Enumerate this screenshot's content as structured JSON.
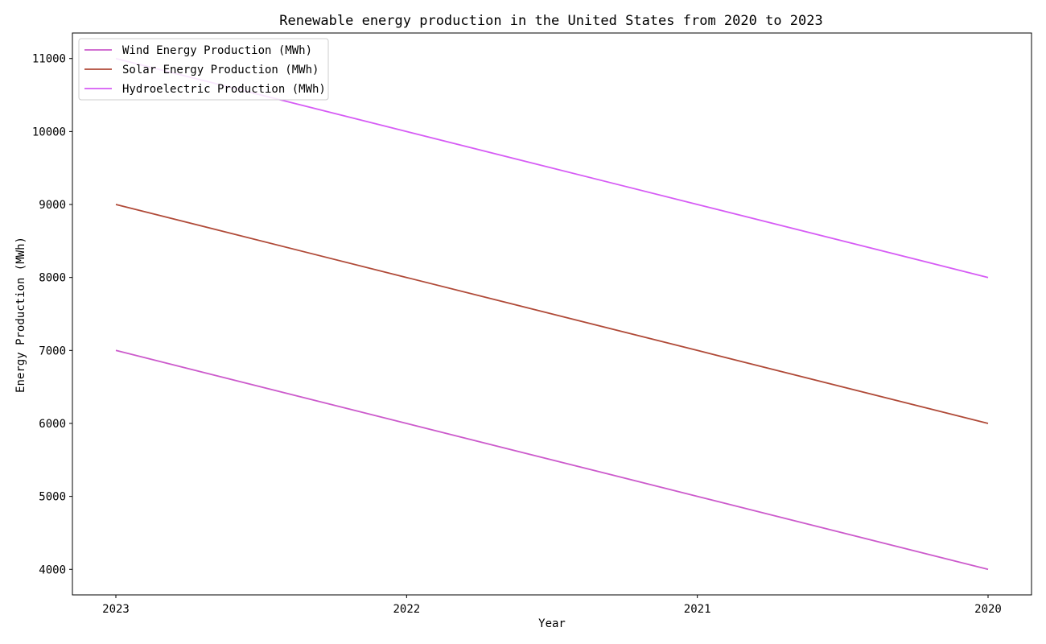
{
  "chart_data": {
    "type": "line",
    "title": "Renewable energy production in the United States from 2020 to 2023",
    "xlabel": "Year",
    "ylabel": "Energy Production (MWh)",
    "categories": [
      "2023",
      "2022",
      "2021",
      "2020"
    ],
    "series": [
      {
        "name": "Wind Energy Production (MWh)",
        "values": [
          7000,
          6000,
          5000,
          4000
        ],
        "color": "#cc5bcc"
      },
      {
        "name": "Solar Energy Production (MWh)",
        "values": [
          9000,
          8000,
          7000,
          6000
        ],
        "color": "#b04a38"
      },
      {
        "name": "Hydroelectric Production (MWh)",
        "values": [
          11000,
          10000,
          9000,
          8000
        ],
        "color": "#d65cf5"
      }
    ],
    "yticks": [
      4000,
      5000,
      6000,
      7000,
      8000,
      9000,
      10000,
      11000
    ],
    "ylim": [
      3650,
      11350
    ],
    "grid": false,
    "legend_position": "top-left"
  }
}
